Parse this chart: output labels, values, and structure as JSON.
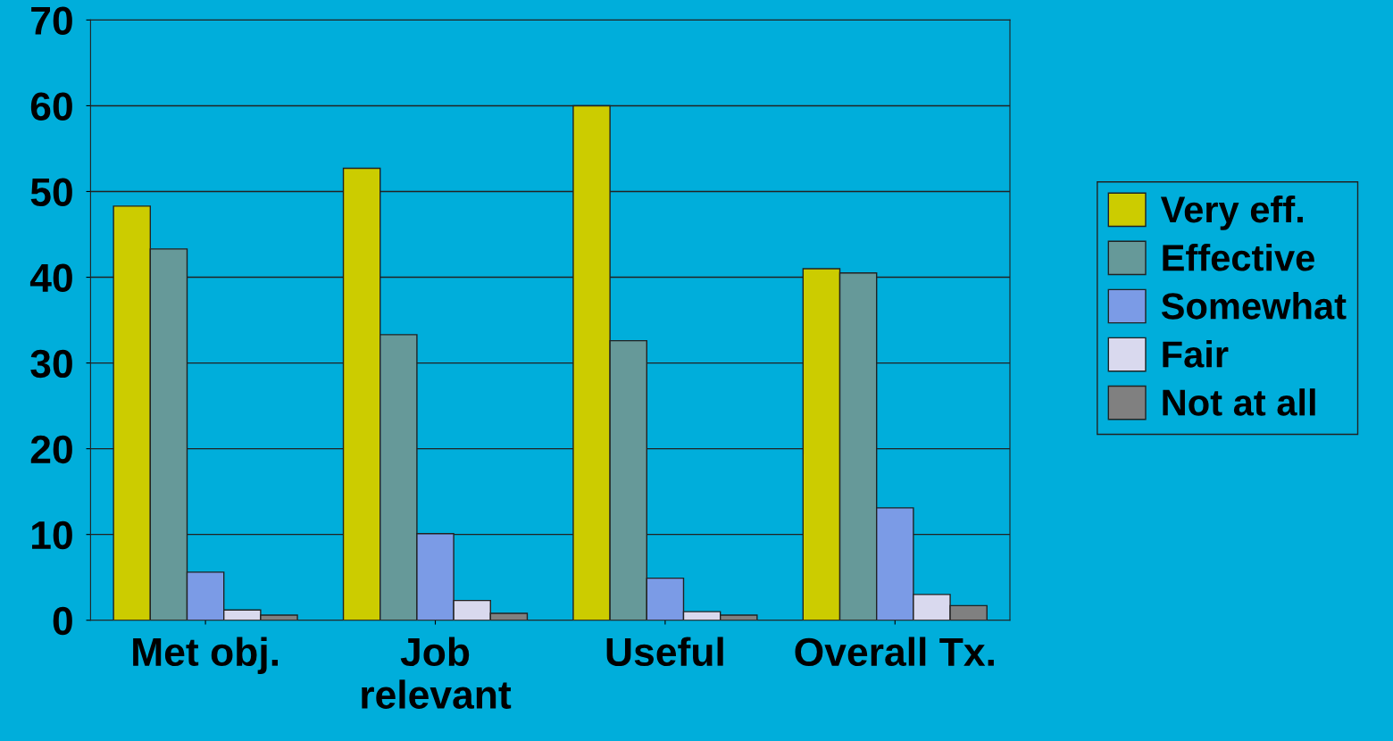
{
  "chart_data": {
    "type": "bar",
    "categories": [
      "Met obj.",
      "Job\nrelevant",
      "Useful",
      "Overall Tx."
    ],
    "series": [
      {
        "name": "Very eff.",
        "color": "#cccc00",
        "values": [
          48.3,
          52.7,
          60.0,
          41.0
        ]
      },
      {
        "name": "Effective",
        "color": "#669999",
        "values": [
          43.3,
          33.3,
          32.6,
          40.5
        ]
      },
      {
        "name": "Somewhat",
        "color": "#7b9be6",
        "values": [
          5.6,
          10.1,
          4.9,
          13.1
        ]
      },
      {
        "name": "Fair",
        "color": "#d9d9ee",
        "values": [
          1.2,
          2.3,
          1.0,
          3.0
        ]
      },
      {
        "name": "Not at all",
        "color": "#808080",
        "values": [
          0.6,
          0.8,
          0.6,
          1.7
        ]
      }
    ],
    "ylim": [
      0,
      70
    ],
    "yticks": [
      0,
      10,
      20,
      30,
      40,
      50,
      60,
      70
    ],
    "grid": "y",
    "legend": "right"
  }
}
